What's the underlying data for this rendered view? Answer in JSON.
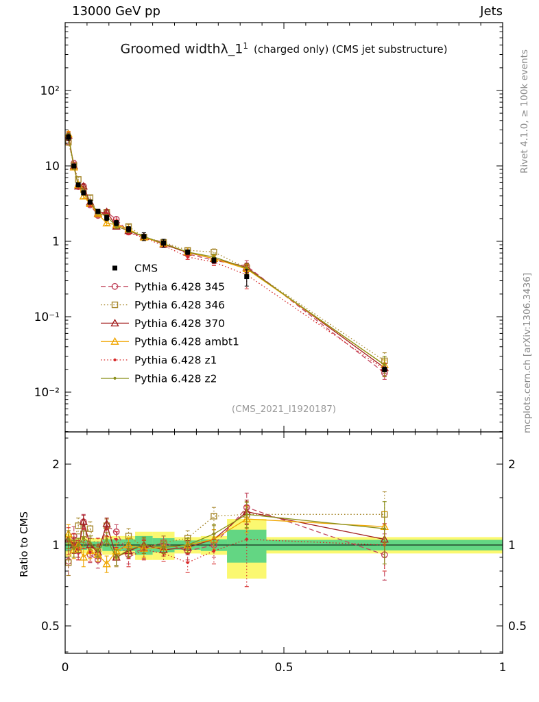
{
  "header": {
    "left": "13000 GeV pp",
    "right": "Jets"
  },
  "titles": {
    "main": "Groomed widthλ_1",
    "sup": "1",
    "suffix": "(charged only) (CMS jet substructure)"
  },
  "watermark": "(CMS_2021_I1920187)",
  "side_notes": {
    "top": "Rivet 4.1.0, ≥ 100k events",
    "bottom": "mcplots.cern.ch [arXiv:1306.3436]"
  },
  "ratio_ylabel": "Ratio to CMS",
  "chart_data": {
    "type": "line",
    "title": "Groomed widthλ_1^1 (charged only) (CMS jet substructure)",
    "xlabel": "",
    "xlim": [
      0,
      1
    ],
    "x_ticks": [
      {
        "v": 0,
        "label": "0"
      },
      {
        "v": 0.5,
        "label": "0.5"
      },
      {
        "v": 1,
        "label": "1"
      }
    ],
    "x_minor_step": 0.05,
    "x_edges": [
      0,
      0.015,
      0.025,
      0.035,
      0.05,
      0.065,
      0.085,
      0.105,
      0.13,
      0.16,
      0.2,
      0.25,
      0.31,
      0.37,
      0.46,
      1.0
    ],
    "x": [
      0.0075,
      0.02,
      0.03,
      0.042,
      0.057,
      0.075,
      0.095,
      0.117,
      0.145,
      0.18,
      0.225,
      0.28,
      0.34,
      0.415,
      0.73
    ],
    "main_panel": {
      "yscale": "log",
      "ylim": [
        0.003,
        790
      ],
      "yticks": [
        {
          "v": 100,
          "label": "10²"
        },
        {
          "v": 10,
          "label": "10"
        },
        {
          "v": 1,
          "label": "1"
        },
        {
          "v": 0.1,
          "label": "10⁻¹"
        },
        {
          "v": 0.01,
          "label": "10⁻²"
        }
      ]
    },
    "ratio_panel": {
      "yscale": "log",
      "ylim": [
        0.39,
        2.64
      ],
      "yticks": [
        {
          "v": 2,
          "label": "2"
        },
        {
          "v": 1,
          "label": "1"
        },
        {
          "v": 0.5,
          "label": "0.5"
        }
      ],
      "band_yellow": [
        0.1,
        0.06,
        0.06,
        0.07,
        0.06,
        0.06,
        0.08,
        0.08,
        0.08,
        0.12,
        0.12,
        0.07,
        0.08,
        0.25,
        0.07
      ],
      "band_green": [
        0.05,
        0.03,
        0.03,
        0.04,
        0.03,
        0.03,
        0.05,
        0.05,
        0.05,
        0.08,
        0.06,
        0.04,
        0.05,
        0.14,
        0.045
      ],
      "band_colors": {
        "yellow": "#fbf870",
        "green": "#63d683"
      }
    },
    "cms": {
      "label": "CMS",
      "color": "#000000",
      "marker": "square-filled",
      "values": [
        24,
        10,
        5.6,
        4.4,
        3.3,
        2.5,
        2.05,
        1.75,
        1.45,
        1.16,
        0.95,
        0.72,
        0.56,
        0.34,
        0.02
      ],
      "rel_err": [
        0.1,
        0.06,
        0.06,
        0.07,
        0.06,
        0.06,
        0.08,
        0.08,
        0.08,
        0.12,
        0.12,
        0.07,
        0.08,
        0.25,
        0.07
      ]
    },
    "series": [
      {
        "label": "Pythia 6.428 345",
        "color": "#c2485f",
        "line": "dash",
        "marker": "circle-open",
        "values": [
          20.9,
          10.8,
          5.32,
          5.37,
          3.04,
          2.2,
          2.42,
          1.96,
          1.33,
          1.13,
          0.97,
          0.68,
          0.56,
          0.47,
          0.018
        ],
        "ratio": [
          0.87,
          1.08,
          0.95,
          1.22,
          0.92,
          0.88,
          1.18,
          1.12,
          0.92,
          0.97,
          1.02,
          0.95,
          1.0,
          1.38,
          0.92
        ],
        "err": [
          0.1,
          0.09,
          0.07,
          0.08,
          0.06,
          0.06,
          0.07,
          0.07,
          0.07,
          0.08,
          0.06,
          0.07,
          0.1,
          0.18,
          0.18
        ]
      },
      {
        "label": "Pythia 6.428 346",
        "color": "#a8892f",
        "line": "dot",
        "marker": "square-open",
        "values": [
          20.6,
          10.2,
          6.61,
          4.84,
          3.8,
          2.33,
          2.42,
          1.58,
          1.57,
          1.14,
          0.97,
          0.76,
          0.72,
          0.44,
          0.026
        ],
        "ratio": [
          0.86,
          1.02,
          1.18,
          1.1,
          1.15,
          0.93,
          1.18,
          0.9,
          1.08,
          0.98,
          1.02,
          1.06,
          1.28,
          1.3,
          1.3
        ],
        "err": [
          0.09,
          0.08,
          0.08,
          0.08,
          0.07,
          0.06,
          0.07,
          0.07,
          0.07,
          0.08,
          0.06,
          0.07,
          0.1,
          0.15,
          0.28
        ]
      },
      {
        "label": "Pythia 6.428 370",
        "color": "#a32020",
        "line": "solid",
        "marker": "triangle-open",
        "values": [
          25.2,
          10.0,
          5.38,
          5.37,
          3.3,
          2.35,
          2.46,
          1.58,
          1.38,
          1.16,
          0.91,
          0.71,
          0.59,
          0.45,
          0.021
        ],
        "ratio": [
          1.05,
          1.0,
          0.96,
          1.22,
          1.0,
          0.94,
          1.2,
          0.9,
          0.95,
          1.0,
          0.96,
          0.98,
          1.05,
          1.33,
          1.05
        ],
        "err": [
          0.08,
          0.07,
          0.06,
          0.07,
          0.06,
          0.05,
          0.06,
          0.06,
          0.06,
          0.07,
          0.05,
          0.06,
          0.09,
          0.14,
          0.15
        ]
      },
      {
        "label": "Pythia 6.428 ambt1",
        "color": "#f0a500",
        "line": "solid",
        "marker": "triangle-open",
        "values": [
          26.4,
          9.6,
          5.6,
          3.96,
          3.14,
          2.3,
          1.74,
          1.66,
          1.45,
          1.13,
          0.93,
          0.72,
          0.59,
          0.43,
          0.023
        ],
        "ratio": [
          1.1,
          0.96,
          1.0,
          0.9,
          0.95,
          0.92,
          0.85,
          0.95,
          1.0,
          0.97,
          0.98,
          1.0,
          1.05,
          1.25,
          1.17
        ],
        "err": [
          0.09,
          0.07,
          0.06,
          0.07,
          0.06,
          0.05,
          0.06,
          0.06,
          0.06,
          0.07,
          0.05,
          0.06,
          0.09,
          0.14,
          0.16
        ]
      },
      {
        "label": "Pythia 6.428 z1",
        "color": "#d62828",
        "line": "dot",
        "marker": "dot",
        "values": [
          25.0,
          10.0,
          5.38,
          4.66,
          3.1,
          2.5,
          2.21,
          1.84,
          1.31,
          1.11,
          0.88,
          0.62,
          0.53,
          0.36,
          0.02
        ],
        "ratio": [
          1.04,
          1.0,
          0.96,
          1.06,
          0.94,
          1.0,
          1.08,
          1.05,
          0.9,
          0.96,
          0.93,
          0.86,
          0.95,
          1.05,
          1.0
        ],
        "err": [
          0.12,
          0.1,
          0.08,
          0.09,
          0.07,
          0.06,
          0.07,
          0.07,
          0.07,
          0.08,
          0.06,
          0.07,
          0.1,
          0.35,
          0.2
        ]
      },
      {
        "label": "Pythia 6.428 z2",
        "color": "#8a8f1a",
        "line": "solid",
        "marker": "dot",
        "values": [
          25.2,
          9.7,
          5.6,
          4.66,
          3.37,
          2.38,
          2.15,
          1.58,
          1.39,
          1.16,
          0.93,
          0.72,
          0.62,
          0.44,
          0.023
        ],
        "ratio": [
          1.05,
          0.97,
          1.0,
          1.06,
          1.02,
          0.95,
          1.05,
          0.9,
          0.96,
          1.0,
          0.98,
          1.0,
          1.1,
          1.3,
          1.15
        ],
        "err": [
          0.08,
          0.07,
          0.06,
          0.07,
          0.06,
          0.05,
          0.06,
          0.06,
          0.06,
          0.07,
          0.05,
          0.06,
          0.09,
          0.14,
          0.3
        ]
      }
    ]
  }
}
